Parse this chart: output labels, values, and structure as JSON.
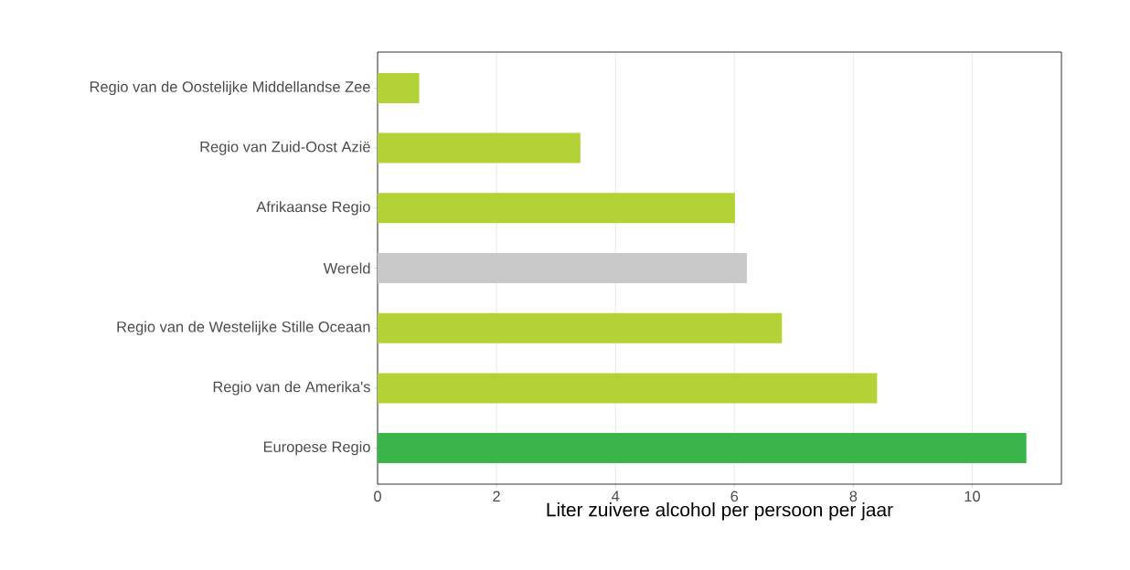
{
  "chart_data": {
    "type": "bar",
    "orientation": "horizontal",
    "categories": [
      "Regio van de Oostelijke Middellandse Zee",
      "Regio van Zuid-Oost Azië",
      "Afrikaanse Regio",
      "Wereld",
      "Regio van de Westelijke Stille Oceaan",
      "Regio van de Amerika's",
      "Europese Regio"
    ],
    "values": [
      0.7,
      3.41,
      6.01,
      6.21,
      6.8,
      8.4,
      10.91
    ],
    "colors": [
      "#b2d235",
      "#b2d235",
      "#b2d235",
      "#c8c8c8",
      "#b2d235",
      "#b2d235",
      "#3ab54a"
    ],
    "xlabel": "Liter zuivere alcohol per persoon per jaar",
    "xlim": [
      0,
      11.5
    ],
    "xticks": [
      0,
      2,
      4,
      6,
      8,
      10
    ],
    "grid": "x"
  }
}
